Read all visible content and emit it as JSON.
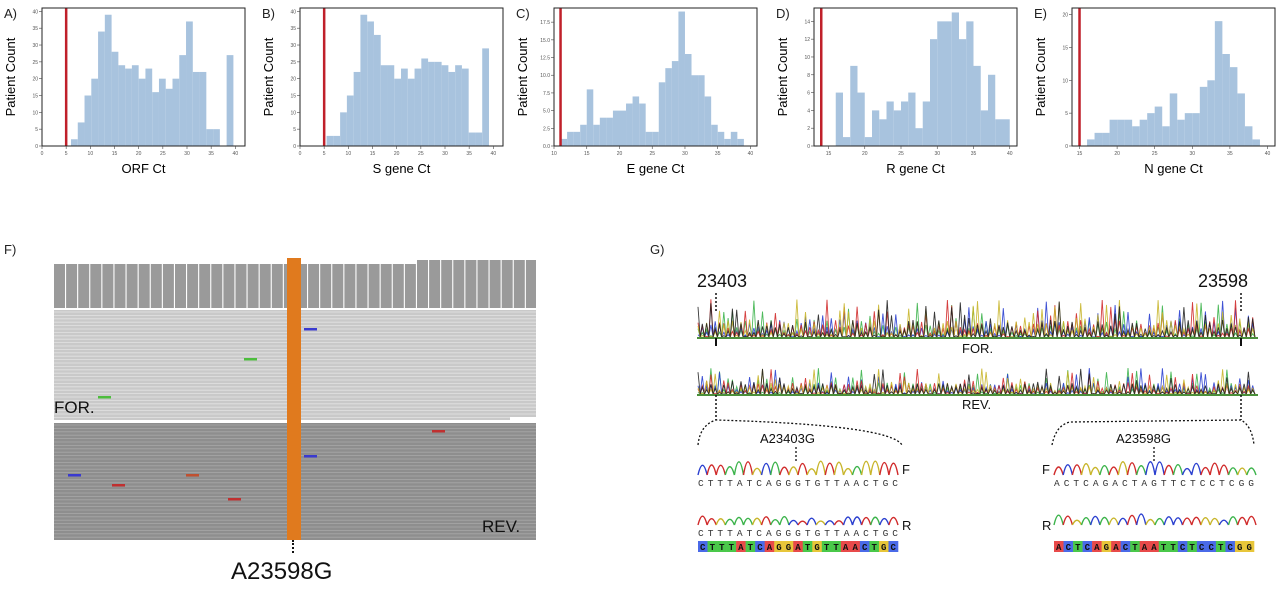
{
  "chart_data": [
    {
      "type": "bar",
      "panel": "A)",
      "xlabel": "ORF Ct",
      "ylabel": "Patient Count",
      "xlim": [
        0,
        42
      ],
      "ylim": [
        0,
        41
      ],
      "xticks": [
        "0",
        "5",
        "10",
        "15",
        "20",
        "25",
        "30",
        "35",
        "40"
      ],
      "yticks": [
        "0",
        "5",
        "10",
        "15",
        "20",
        "25",
        "30",
        "35",
        "40"
      ],
      "threshold": 5,
      "x": [
        6,
        7.4,
        8.8,
        10.2,
        11.6,
        13,
        14.4,
        15.8,
        17.2,
        18.6,
        20,
        21.4,
        22.8,
        24.2,
        25.6,
        27,
        28.4,
        29.8,
        31.2,
        32.6,
        34,
        35.4,
        36.8,
        38.2,
        39.6
      ],
      "values": [
        2,
        7,
        15,
        20,
        34,
        39,
        28,
        24,
        23,
        24,
        20,
        23,
        16,
        20,
        17,
        20,
        27,
        37,
        22,
        22,
        5,
        5,
        0,
        27,
        0
      ]
    },
    {
      "type": "bar",
      "panel": "B)",
      "xlabel": "S gene Ct",
      "ylabel": "Patient Count",
      "xlim": [
        0,
        42
      ],
      "ylim": [
        0,
        41
      ],
      "xticks": [
        "0",
        "5",
        "10",
        "15",
        "20",
        "25",
        "30",
        "35",
        "40"
      ],
      "yticks": [
        "0",
        "5",
        "10",
        "15",
        "20",
        "25",
        "30",
        "35",
        "40"
      ],
      "threshold": 5,
      "x": [
        5.5,
        6.9,
        8.3,
        9.7,
        11.1,
        12.5,
        13.9,
        15.3,
        16.7,
        18.1,
        19.5,
        20.9,
        22.3,
        23.7,
        25.1,
        26.5,
        27.9,
        29.3,
        30.7,
        32.1,
        33.5,
        34.9,
        36.3,
        37.7,
        39.1
      ],
      "values": [
        3,
        3,
        10,
        15,
        22,
        39,
        37,
        33,
        24,
        24,
        20,
        23,
        20,
        23,
        26,
        25,
        25,
        24,
        22,
        24,
        23,
        4,
        4,
        29,
        0
      ]
    },
    {
      "type": "bar",
      "panel": "C)",
      "xlabel": "E gene Ct",
      "ylabel": "Patient Count",
      "xlim": [
        10,
        41
      ],
      "ylim": [
        0,
        19.5
      ],
      "xticks": [
        "10",
        "15",
        "20",
        "25",
        "30",
        "35",
        "40"
      ],
      "yticks": [
        "0.0",
        "2.5",
        "5.0",
        "7.5",
        "10.0",
        "12.5",
        "15.0",
        "17.5"
      ],
      "threshold": 11,
      "x": [
        11,
        12,
        13,
        14,
        15,
        16,
        17,
        18,
        19,
        20,
        21,
        22,
        23,
        24,
        25,
        26,
        27,
        28,
        29,
        30,
        31,
        32,
        33,
        34,
        35,
        36,
        37,
        38,
        39
      ],
      "values": [
        1,
        2,
        2,
        3,
        8,
        3,
        4,
        4,
        5,
        5,
        6,
        7,
        6,
        2,
        2,
        9,
        11,
        12,
        19,
        13,
        10,
        10,
        7,
        3,
        2,
        1,
        2,
        1,
        0
      ]
    },
    {
      "type": "bar",
      "panel": "D)",
      "xlabel": "R gene Ct",
      "ylabel": "Patient Count",
      "xlim": [
        13,
        41
      ],
      "ylim": [
        0,
        15.5
      ],
      "xticks": [
        "15",
        "20",
        "25",
        "30",
        "35",
        "40"
      ],
      "yticks": [
        "0",
        "2",
        "4",
        "6",
        "8",
        "10",
        "12",
        "14"
      ],
      "threshold": 14,
      "x": [
        14,
        15,
        16,
        17,
        18,
        19,
        20,
        21,
        22,
        23,
        24,
        25,
        26,
        27,
        28,
        29,
        30,
        31,
        32,
        33,
        34,
        35,
        36,
        37,
        38,
        39
      ],
      "values": [
        0,
        0,
        6,
        1,
        9,
        6,
        1,
        4,
        3,
        5,
        4,
        5,
        6,
        2,
        5,
        12,
        14,
        14,
        15,
        12,
        14,
        9,
        4,
        8,
        3,
        3
      ]
    },
    {
      "type": "bar",
      "panel": "E)",
      "xlabel": "N gene Ct",
      "ylabel": "Patient Count",
      "xlim": [
        14,
        41
      ],
      "ylim": [
        0,
        21
      ],
      "xticks": [
        "15",
        "20",
        "25",
        "30",
        "35",
        "40"
      ],
      "yticks": [
        "0",
        "5",
        "10",
        "15",
        "20"
      ],
      "threshold": 15,
      "x": [
        15,
        16,
        17,
        18,
        19,
        20,
        21,
        22,
        23,
        24,
        25,
        26,
        27,
        28,
        29,
        30,
        31,
        32,
        33,
        34,
        35,
        36,
        37,
        38,
        39
      ],
      "values": [
        0,
        1,
        2,
        2,
        4,
        4,
        4,
        3,
        4,
        5,
        6,
        3,
        8,
        4,
        5,
        5,
        9,
        10,
        19,
        14,
        12,
        8,
        3,
        1,
        0
      ]
    }
  ],
  "figure_f": {
    "panel": "F)",
    "forward_label": "FOR.",
    "reverse_label": "REV.",
    "mutation": "A23598G"
  },
  "figure_g": {
    "panel": "G)",
    "start_pos": "23403",
    "end_pos": "23598",
    "track1": "FOR.",
    "track2": "REV.",
    "left_mutation": "A23403G",
    "right_mutation": "A23598G",
    "left_seq_f": "CTTTATCAGGGTGTTAACTGC",
    "left_seq_r": "CTTTATCAGGGTGTTAACTGC",
    "left_ref": "CTTTATCAGGATGTTAACTGC",
    "right_seq_f": "ACTCAGACTAGTTCTCCTCGG",
    "right_ref": "ACTCAGACTAATTCTCCTCGG",
    "f_label": "F",
    "r_label": "R",
    "colors": {
      "bar": "#a8c3de",
      "threshold": "#c0202a",
      "mutation": "#e07a1e"
    }
  }
}
